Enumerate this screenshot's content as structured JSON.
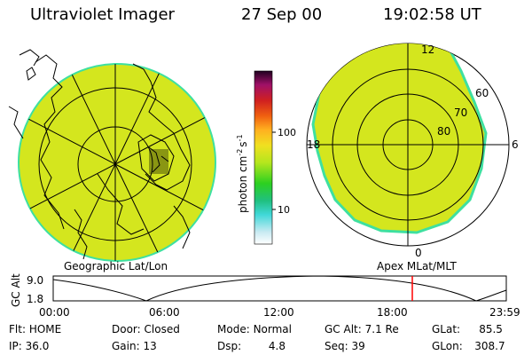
{
  "header": {
    "instrument": "Ultraviolet Imager",
    "date": "27 Sep 00",
    "time": "19:02:58 UT"
  },
  "colorbar": {
    "unit_label": "photon cm",
    "unit_sup1": "-2",
    "unit_mid": "s",
    "unit_sup2": "-1",
    "tick_100": "100",
    "tick_10": "10"
  },
  "polar_plot": {
    "lat_labels": [
      "60",
      "70",
      "80"
    ],
    "mlt_labels": [
      "12",
      "18",
      "6",
      "0"
    ]
  },
  "projection_labels": {
    "left": "Geographic Lat/Lon",
    "right": "Apex MLat/MLT"
  },
  "altitude_plot": {
    "axis_label": "GC Alt",
    "y_ticks": [
      "9.0",
      "1.8"
    ],
    "x_ticks": [
      "00:00",
      "06:00",
      "12:00",
      "18:00",
      "23:59"
    ],
    "current_time_marker": "19:03",
    "marker_color": "#ff0000"
  },
  "status": {
    "row1": [
      {
        "key": "Flt:",
        "value": "HOME"
      },
      {
        "key": "Door:",
        "value": "Closed"
      },
      {
        "key": "Mode:",
        "value": "Normal"
      },
      {
        "key": "GC Alt:",
        "value": "7.1 Re"
      },
      {
        "key": "GLat:",
        "value": "85.5"
      }
    ],
    "row2": [
      {
        "key": "IP:",
        "value": "36.0"
      },
      {
        "key": "Gain:",
        "value": "13"
      },
      {
        "key": "Dsp:",
        "value": "4.8"
      },
      {
        "key": "Seq:",
        "value": "39"
      },
      {
        "key": "GLon:",
        "value": "308.7"
      }
    ]
  },
  "colors": {
    "emission": "#d4e61e",
    "edge": "#3ee0a0",
    "background": "#ffffff"
  }
}
